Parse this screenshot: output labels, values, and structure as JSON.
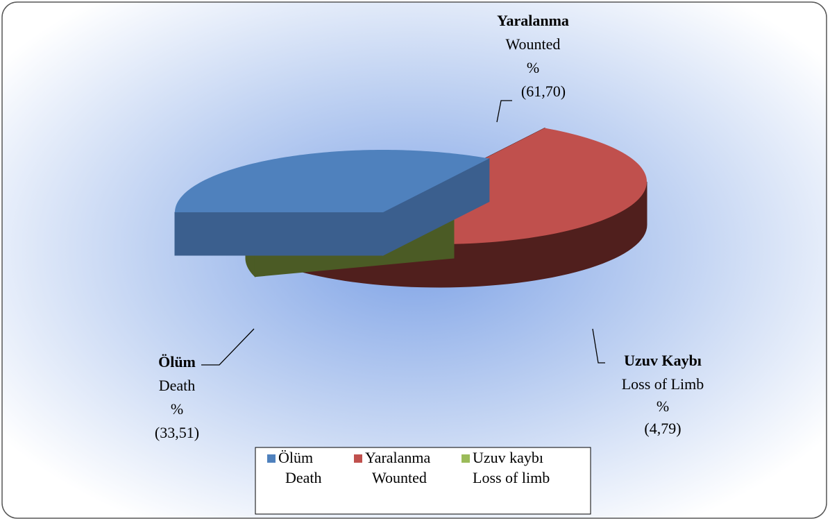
{
  "chart_data": {
    "type": "pie",
    "categories": [
      "Ölüm",
      "Yaralanma",
      "Uzuv Kaybı"
    ],
    "categories_en": [
      "Death",
      "Wounted",
      "Loss of Limb"
    ],
    "unit": "%",
    "values": [
      33.51,
      61.7,
      4.79
    ],
    "value_labels": [
      "(33,51)",
      "(61,70)",
      "(4,79)"
    ],
    "colors": [
      "#4f81bd",
      "#c0504d",
      "#9bbb59"
    ],
    "side_colors": [
      "#3b5f8e",
      "#501f1d",
      "#4b5b25"
    ],
    "legend": {
      "position": "bottom",
      "labels": [
        "Ölüm",
        "Yaralanma",
        "Uzuv kaybı"
      ],
      "sublabels": [
        "Death",
        "Wounted",
        "Loss of limb"
      ]
    }
  }
}
